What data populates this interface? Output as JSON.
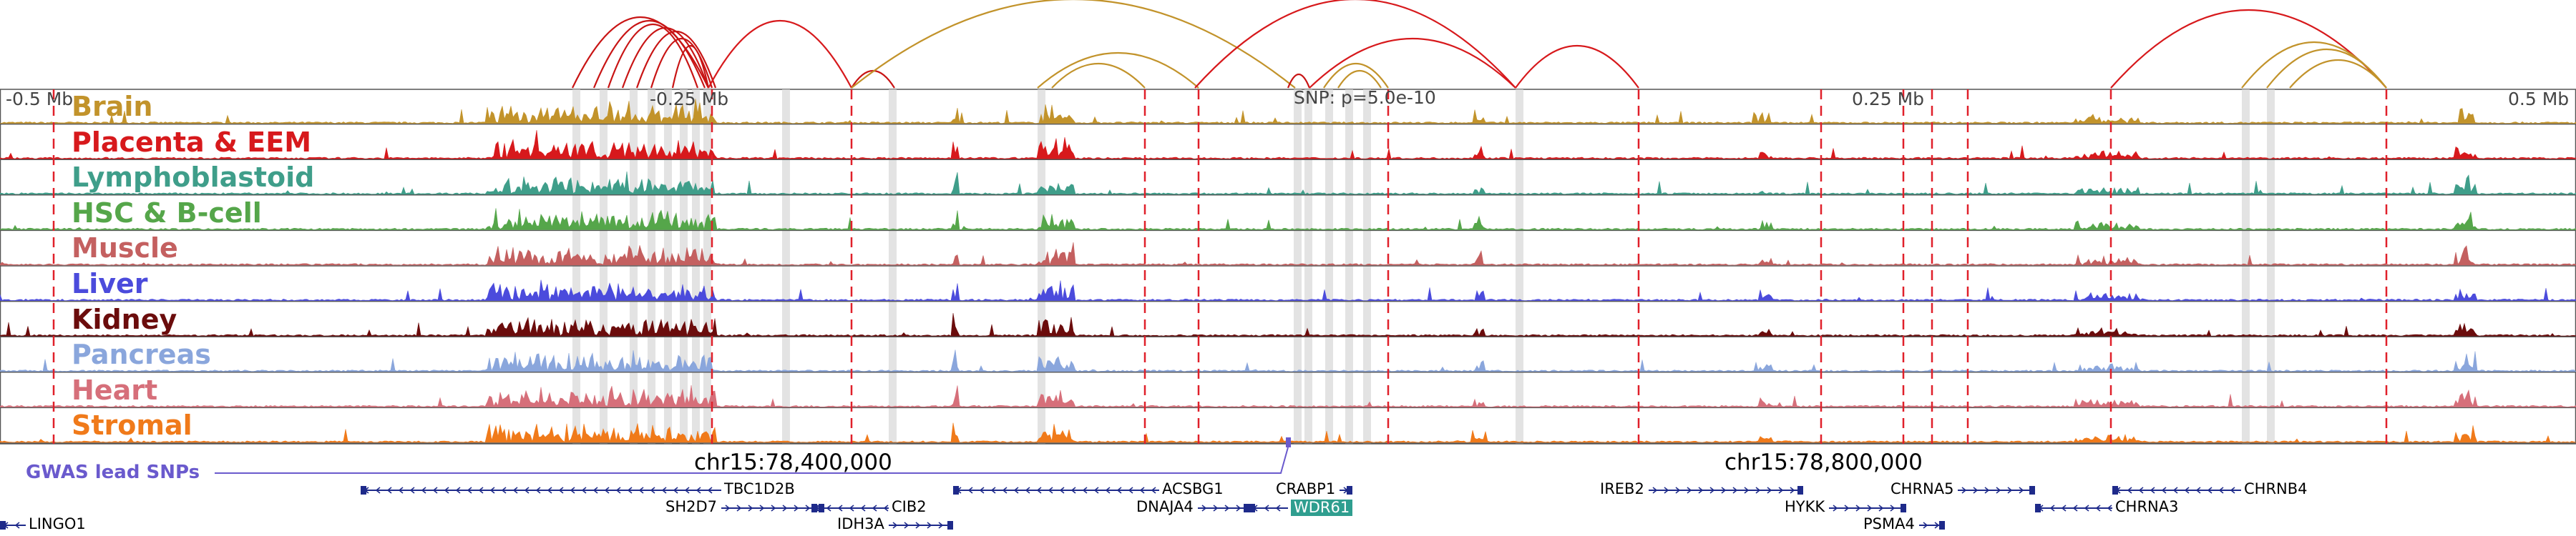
{
  "browser": {
    "scale_labels": {
      "left": "-0.5 Mb",
      "mid_left": "-0.25 Mb",
      "snp": "SNP: p=5.0e-10",
      "mid_right": "0.25 Mb",
      "right": "0.5 Mb"
    },
    "coordinates": [
      "chr15:78,400,000",
      "chr15:78,800,000"
    ],
    "gwas_label": "GWAS lead SNPs",
    "region_mb": [
      -0.5,
      0.5
    ],
    "snp_position_mb": 0.0,
    "tracks": [
      {
        "name": "Brain",
        "color": "#c2932b"
      },
      {
        "name": "Placenta & EEM",
        "color": "#d7191c"
      },
      {
        "name": "Lymphoblastoid",
        "color": "#3f9e8a"
      },
      {
        "name": "HSC & B-cell",
        "color": "#55a64a"
      },
      {
        "name": "Muscle",
        "color": "#c46060"
      },
      {
        "name": "Liver",
        "color": "#4b4bdc"
      },
      {
        "name": "Kidney",
        "color": "#6b0c0c"
      },
      {
        "name": "Pancreas",
        "color": "#8aa6dc"
      },
      {
        "name": "Heart",
        "color": "#d66f7a"
      },
      {
        "name": "Stromal",
        "color": "#f07a1a"
      }
    ],
    "genes": [
      {
        "name": "LINGO1",
        "start_mb": -0.5,
        "end_mb": -0.49,
        "strand": "-",
        "row": 2
      },
      {
        "name": "TBC1D2B",
        "start_mb": -0.36,
        "end_mb": -0.22,
        "strand": "-",
        "row": 0
      },
      {
        "name": "SH2D7",
        "start_mb": -0.22,
        "end_mb": -0.18,
        "strand": "+",
        "row": 1
      },
      {
        "name": "CIB2",
        "start_mb": -0.185,
        "end_mb": -0.155,
        "strand": "-",
        "row": 1
      },
      {
        "name": "IDH3A",
        "start_mb": -0.155,
        "end_mb": -0.13,
        "strand": "+",
        "row": 2
      },
      {
        "name": "ACSBG1",
        "start_mb": -0.13,
        "end_mb": -0.05,
        "strand": "-",
        "row": 0
      },
      {
        "name": "DNAJA4",
        "start_mb": -0.035,
        "end_mb": -0.015,
        "strand": "+",
        "row": 1
      },
      {
        "name": "WDR61",
        "start_mb": -0.015,
        "end_mb": 0.0,
        "strand": "-",
        "row": 1,
        "highlight": true
      },
      {
        "name": "CRABP1",
        "start_mb": 0.02,
        "end_mb": 0.025,
        "strand": "+",
        "row": 0
      },
      {
        "name": "IREB2",
        "start_mb": 0.14,
        "end_mb": 0.2,
        "strand": "+",
        "row": 0
      },
      {
        "name": "HYKK",
        "start_mb": 0.21,
        "end_mb": 0.24,
        "strand": "+",
        "row": 1
      },
      {
        "name": "PSMA4",
        "start_mb": 0.245,
        "end_mb": 0.255,
        "strand": "+",
        "row": 2
      },
      {
        "name": "CHRNA5",
        "start_mb": 0.26,
        "end_mb": 0.29,
        "strand": "+",
        "row": 0
      },
      {
        "name": "CHRNA3",
        "start_mb": 0.29,
        "end_mb": 0.32,
        "strand": "-",
        "row": 1
      },
      {
        "name": "CHRNB4",
        "start_mb": 0.32,
        "end_mb": 0.37,
        "strand": "-",
        "row": 0
      }
    ]
  }
}
